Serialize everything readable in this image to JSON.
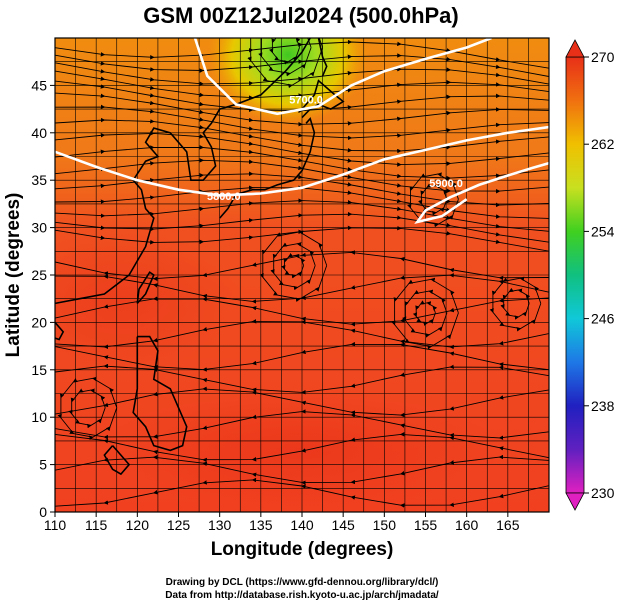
{
  "title": "GSM 00Z12Jul2024 (500.0hPa)",
  "xaxis": {
    "label": "Longitude (degrees)",
    "range": [
      110,
      170
    ],
    "ticks": [
      "110",
      "115",
      "120",
      "125",
      "130",
      "135",
      "140",
      "145",
      "150",
      "155",
      "160",
      "165"
    ],
    "tick_values": [
      110,
      115,
      120,
      125,
      130,
      135,
      140,
      145,
      150,
      155,
      160,
      165
    ]
  },
  "yaxis": {
    "label": "Latitude  (degrees)",
    "range": [
      0,
      50
    ],
    "ticks": [
      "0",
      "5",
      "10",
      "15",
      "20",
      "25",
      "30",
      "35",
      "40",
      "45"
    ],
    "tick_values": [
      0,
      5,
      10,
      15,
      20,
      25,
      30,
      35,
      40,
      45
    ]
  },
  "colorbar": {
    "range": [
      230,
      270
    ],
    "labels": [
      "230",
      "238",
      "246",
      "254",
      "262",
      "270"
    ],
    "label_values": [
      230,
      238,
      246,
      254,
      262,
      270
    ],
    "colors": [
      "#e020c0",
      "#2020c0",
      "#1e78e6",
      "#10c8d8",
      "#10c060",
      "#40d020",
      "#c8e020",
      "#f0c000",
      "#f08c00",
      "#f05a10",
      "#e83018"
    ]
  },
  "contours": [
    {
      "label": "5800.0",
      "points": [
        [
          110,
          38
        ],
        [
          115,
          36.4
        ],
        [
          120,
          35
        ],
        [
          125,
          34
        ],
        [
          130,
          33.4
        ],
        [
          135,
          33.6
        ],
        [
          140,
          34.2
        ],
        [
          145,
          35.6
        ],
        [
          150,
          37.2
        ],
        [
          155,
          38.2
        ],
        [
          160,
          39.2
        ],
        [
          165,
          40
        ],
        [
          170,
          40.6
        ]
      ],
      "label_at": [
        130.5,
        32.9
      ]
    },
    {
      "label": "5700.0",
      "points": [
        [
          127,
          50
        ],
        [
          128.5,
          46
        ],
        [
          132,
          43
        ],
        [
          137,
          42
        ],
        [
          142,
          42.8
        ],
        [
          146,
          45
        ],
        [
          150,
          46.5
        ],
        [
          155,
          47.8
        ],
        [
          160,
          49
        ],
        [
          163,
          50
        ]
      ],
      "label_at": [
        140.5,
        43.1
      ]
    },
    {
      "label": "5900.0",
      "points": [
        [
          160,
          33
        ],
        [
          157,
          31.2
        ],
        [
          154,
          30.6
        ],
        [
          155,
          31.8
        ],
        [
          158,
          33.2
        ],
        [
          161.5,
          34.5
        ],
        [
          165,
          35.5
        ],
        [
          168,
          36.3
        ],
        [
          170,
          36.8
        ]
      ],
      "label_at": [
        157.5,
        34.3
      ]
    }
  ],
  "footer": {
    "line1": "Drawing by DCL (https://www.gfd-dennou.org/library/dcl/)",
    "line2": "Data from http://database.rish.kyoto-u.ac.jp/arch/jmadata/"
  }
}
